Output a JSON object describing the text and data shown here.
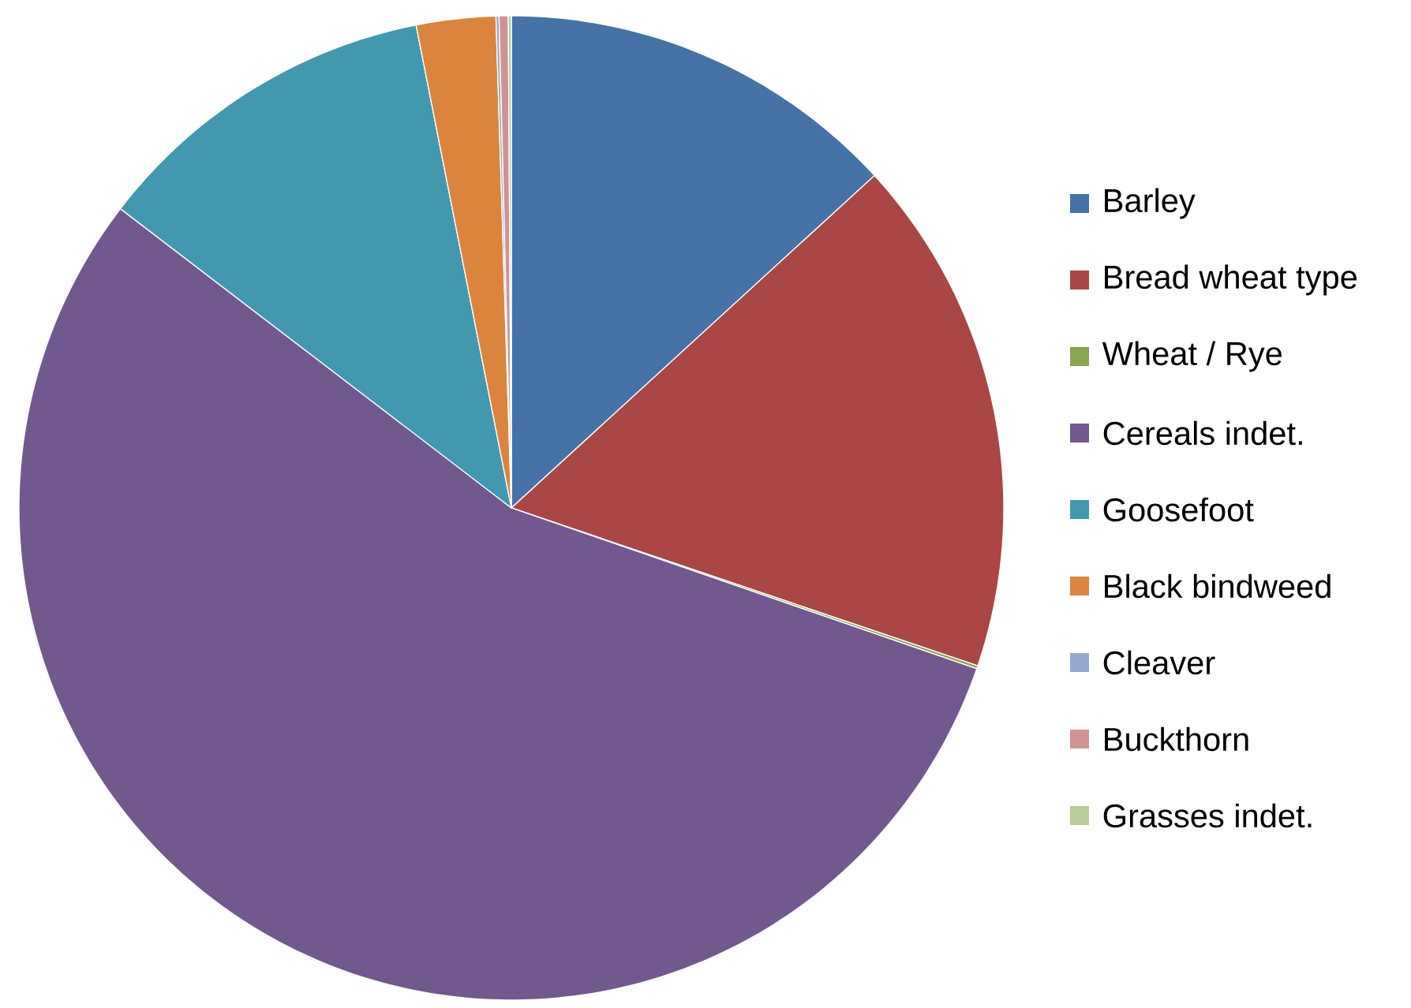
{
  "chart_data": {
    "type": "pie",
    "categories": [
      "Barley",
      "Bread wheat type",
      "Wheat / Rye",
      "Cereals indet.",
      "Goosefoot",
      "Black bindweed",
      "Cleaver",
      "Buckthorn",
      "Grasses indet."
    ],
    "values": [
      13.2,
      17.0,
      0.1,
      55.1,
      11.5,
      2.6,
      0.1,
      0.3,
      0.1
    ],
    "colors": [
      "#4572a7",
      "#aa4643",
      "#89a54e",
      "#71588f",
      "#4198af",
      "#db843d",
      "#93a9cf",
      "#d19392",
      "#b9cd96"
    ],
    "legend": "right"
  }
}
